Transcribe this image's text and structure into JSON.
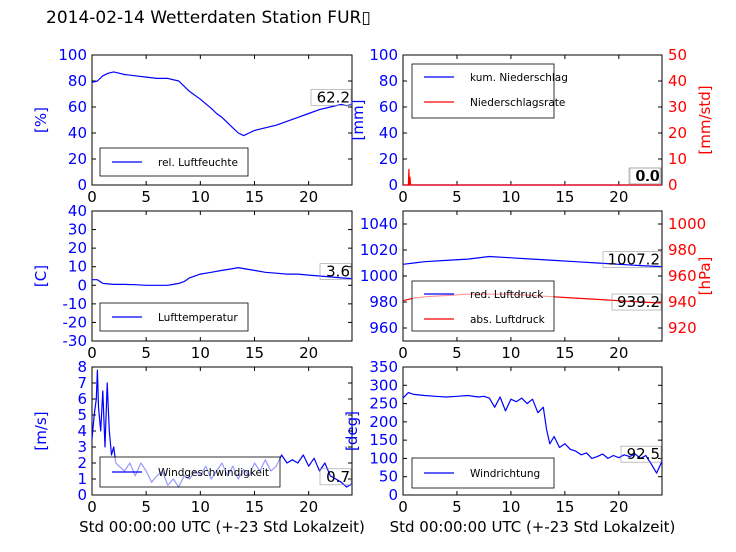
{
  "figure": {
    "title": "2014-02-14 Wetterdaten Station FUR▯",
    "xlabel": "Std 00:00:00 UTC (+-23 Std Lokalzeit)"
  },
  "colors": {
    "blue": "#0000ff",
    "red": "#ff0000",
    "light_blue": "#7b7bff"
  },
  "chart_data": [
    {
      "id": "humidity",
      "type": "line",
      "xlim": [
        0,
        24
      ],
      "xticks": [
        0,
        5,
        10,
        15,
        20
      ],
      "ylim": [
        0,
        100
      ],
      "yticks": [
        0,
        20,
        40,
        60,
        80,
        100
      ],
      "ylabel": "[%]",
      "series": [
        {
          "name": "rel. Luftfeuchte",
          "color": "#0000ff",
          "x": [
            0,
            0.5,
            1,
            1.5,
            2,
            2.5,
            3,
            4,
            5,
            6,
            7,
            8,
            8.5,
            9,
            10,
            11,
            11.5,
            12,
            12.5,
            13,
            13.5,
            14,
            14.5,
            15,
            16,
            17,
            18,
            19,
            20,
            21,
            22,
            23,
            23.5,
            24
          ],
          "y": [
            79,
            80,
            84,
            86,
            87,
            86,
            85,
            84,
            83,
            82,
            82,
            80,
            76,
            72,
            66,
            59,
            55,
            52,
            48,
            44,
            40,
            38,
            40,
            42,
            44,
            46,
            49,
            52,
            55,
            58,
            60,
            62,
            61,
            62
          ]
        }
      ],
      "annotation": "62.2",
      "legend_position": "lower-center"
    },
    {
      "id": "precipitation",
      "type": "line",
      "xlim": [
        0,
        24
      ],
      "xticks": [
        0,
        5,
        10,
        15,
        20
      ],
      "ylim": [
        0,
        100
      ],
      "yticks": [
        0,
        20,
        40,
        60,
        80,
        100
      ],
      "ylabel": "[mm]",
      "y2lim": [
        0,
        50
      ],
      "y2ticks": [
        0,
        10,
        20,
        30,
        40,
        50
      ],
      "y2label": "[mm/std]",
      "series": [
        {
          "name": "kum. Niederschlag",
          "color": "#0000ff",
          "x": [
            0,
            24
          ],
          "y": [
            0,
            0
          ]
        },
        {
          "name": "Niederschlagsrate",
          "axis": "right",
          "color": "#ff0000",
          "x": [
            0,
            0.5,
            0.55,
            0.6,
            0.65,
            0.7,
            24
          ],
          "y": [
            0,
            0,
            6,
            0,
            3,
            0,
            0
          ]
        }
      ],
      "annotations": [
        "0.0",
        "0.0"
      ],
      "legend_position": "upper-left"
    },
    {
      "id": "temperature",
      "type": "line",
      "xlim": [
        0,
        24
      ],
      "xticks": [
        0,
        5,
        10,
        15,
        20
      ],
      "ylim": [
        -30,
        40
      ],
      "yticks": [
        -30,
        -20,
        -10,
        0,
        10,
        20,
        30,
        40
      ],
      "ylabel": "[C]",
      "series": [
        {
          "name": "Lufttemperatur",
          "color": "#0000ff",
          "x": [
            0,
            0.5,
            1,
            2,
            3,
            4,
            5,
            6,
            7,
            7.5,
            8,
            8.5,
            9,
            10,
            11,
            12,
            13,
            13.5,
            14,
            15,
            16,
            17,
            18,
            19,
            20,
            21,
            22,
            23,
            24
          ],
          "y": [
            3,
            3,
            1,
            0.5,
            0.5,
            0.3,
            0,
            0,
            0,
            0.5,
            1,
            2,
            4,
            6,
            7,
            8,
            9,
            9.5,
            9,
            8,
            7,
            6.5,
            6,
            6,
            5.5,
            5,
            4.5,
            4,
            3.6
          ]
        }
      ],
      "annotation": "3.6",
      "legend_position": "lower-center"
    },
    {
      "id": "pressure",
      "type": "line",
      "xlim": [
        0,
        24
      ],
      "xticks": [
        0,
        5,
        10,
        15,
        20
      ],
      "ylim": [
        950,
        1050
      ],
      "yticks": [
        960,
        980,
        1000,
        1020,
        1040
      ],
      "y2lim": [
        910,
        1010
      ],
      "y2ticks": [
        920,
        940,
        960,
        980,
        1000
      ],
      "y2label": "[hPa]",
      "series": [
        {
          "name": "red. Luftdruck",
          "color": "#0000ff",
          "x": [
            0,
            1,
            2,
            4,
            6,
            8,
            10,
            12,
            14,
            16,
            18,
            20,
            22,
            24
          ],
          "y": [
            1009,
            1010,
            1011,
            1012,
            1013,
            1015,
            1014,
            1013,
            1012,
            1011,
            1010,
            1009,
            1008,
            1007.2
          ]
        },
        {
          "name": "abs. Luftdruck",
          "axis": "right",
          "color": "#ff0000",
          "x": [
            0,
            1,
            2,
            4,
            6,
            8,
            10,
            12,
            14,
            16,
            18,
            20,
            22,
            24
          ],
          "y": [
            941,
            943,
            944,
            945,
            946,
            946,
            946,
            945,
            944,
            943,
            942,
            941,
            940,
            939.2
          ]
        }
      ],
      "annotations": [
        "1007.2",
        "939.2"
      ],
      "legend_position": "lower-left"
    },
    {
      "id": "windspeed",
      "type": "line",
      "xlim": [
        0,
        24
      ],
      "xticks": [
        0,
        5,
        10,
        15,
        20
      ],
      "ylim": [
        0,
        8
      ],
      "yticks": [
        0,
        1,
        2,
        3,
        4,
        5,
        6,
        7,
        8
      ],
      "ylabel": "[m/s]",
      "series": [
        {
          "name": "Windgeschwindigkeit",
          "color": "#0000ff",
          "x": [
            0,
            0.2,
            0.4,
            0.5,
            0.6,
            0.8,
            1,
            1.2,
            1.4,
            1.6,
            1.8,
            2,
            2.2,
            2.5,
            3,
            3.5,
            4,
            4.5,
            5,
            5.5,
            6,
            6.5,
            7,
            7.5,
            8,
            8.5,
            9,
            9.5,
            10,
            10.5,
            11,
            11.5,
            12,
            12.5,
            13,
            13.5,
            14,
            14.5,
            15,
            15.5,
            16,
            16.5,
            17,
            17.5,
            18,
            18.5,
            19,
            19.5,
            20,
            20.5,
            21,
            21.5,
            22,
            22.5,
            23,
            23.5,
            24
          ],
          "y": [
            3.5,
            5,
            6,
            7.8,
            5.5,
            4,
            6.5,
            3,
            7,
            4,
            2.5,
            3,
            2,
            1.8,
            1.5,
            2,
            1.2,
            2,
            1.5,
            0.8,
            1.2,
            1.5,
            0.6,
            1,
            0.5,
            1.2,
            1,
            1.5,
            1.2,
            1.8,
            1,
            1.5,
            2,
            1.2,
            1.8,
            1,
            1.6,
            1.2,
            2,
            1.5,
            2.2,
            1.5,
            1.8,
            2.5,
            2,
            2.2,
            2,
            2.5,
            1.8,
            2.3,
            1.5,
            2,
            1.2,
            1,
            0.8,
            0.5,
            0.7
          ]
        }
      ],
      "annotation": "0.7",
      "legend_position": "lower-center"
    },
    {
      "id": "winddirection",
      "type": "line",
      "xlim": [
        0,
        24
      ],
      "xticks": [
        0,
        5,
        10,
        15,
        20
      ],
      "ylim": [
        0,
        350
      ],
      "yticks": [
        0,
        50,
        100,
        150,
        200,
        250,
        300,
        350
      ],
      "ylabel": "[deg]",
      "series": [
        {
          "name": "Windrichtung",
          "color": "#0000ff",
          "x": [
            0,
            0.5,
            1,
            2,
            3,
            4,
            5,
            6,
            7,
            7.5,
            8,
            8.5,
            9,
            9.5,
            10,
            10.5,
            11,
            11.5,
            12,
            12.5,
            13,
            13.3,
            13.6,
            14,
            14.5,
            15,
            15.5,
            16,
            16.5,
            17,
            17.5,
            18,
            18.5,
            19,
            19.5,
            20,
            20.5,
            21,
            21.5,
            22,
            22.5,
            23,
            23.5,
            24
          ],
          "y": [
            265,
            280,
            275,
            272,
            270,
            268,
            270,
            272,
            268,
            270,
            265,
            240,
            268,
            230,
            262,
            255,
            265,
            250,
            262,
            225,
            240,
            180,
            140,
            160,
            130,
            140,
            125,
            120,
            110,
            115,
            100,
            105,
            112,
            100,
            108,
            102,
            110,
            105,
            112,
            100,
            108,
            85,
            60,
            92.5
          ]
        }
      ],
      "annotation": "92.5",
      "legend_position": "lower-left"
    }
  ]
}
